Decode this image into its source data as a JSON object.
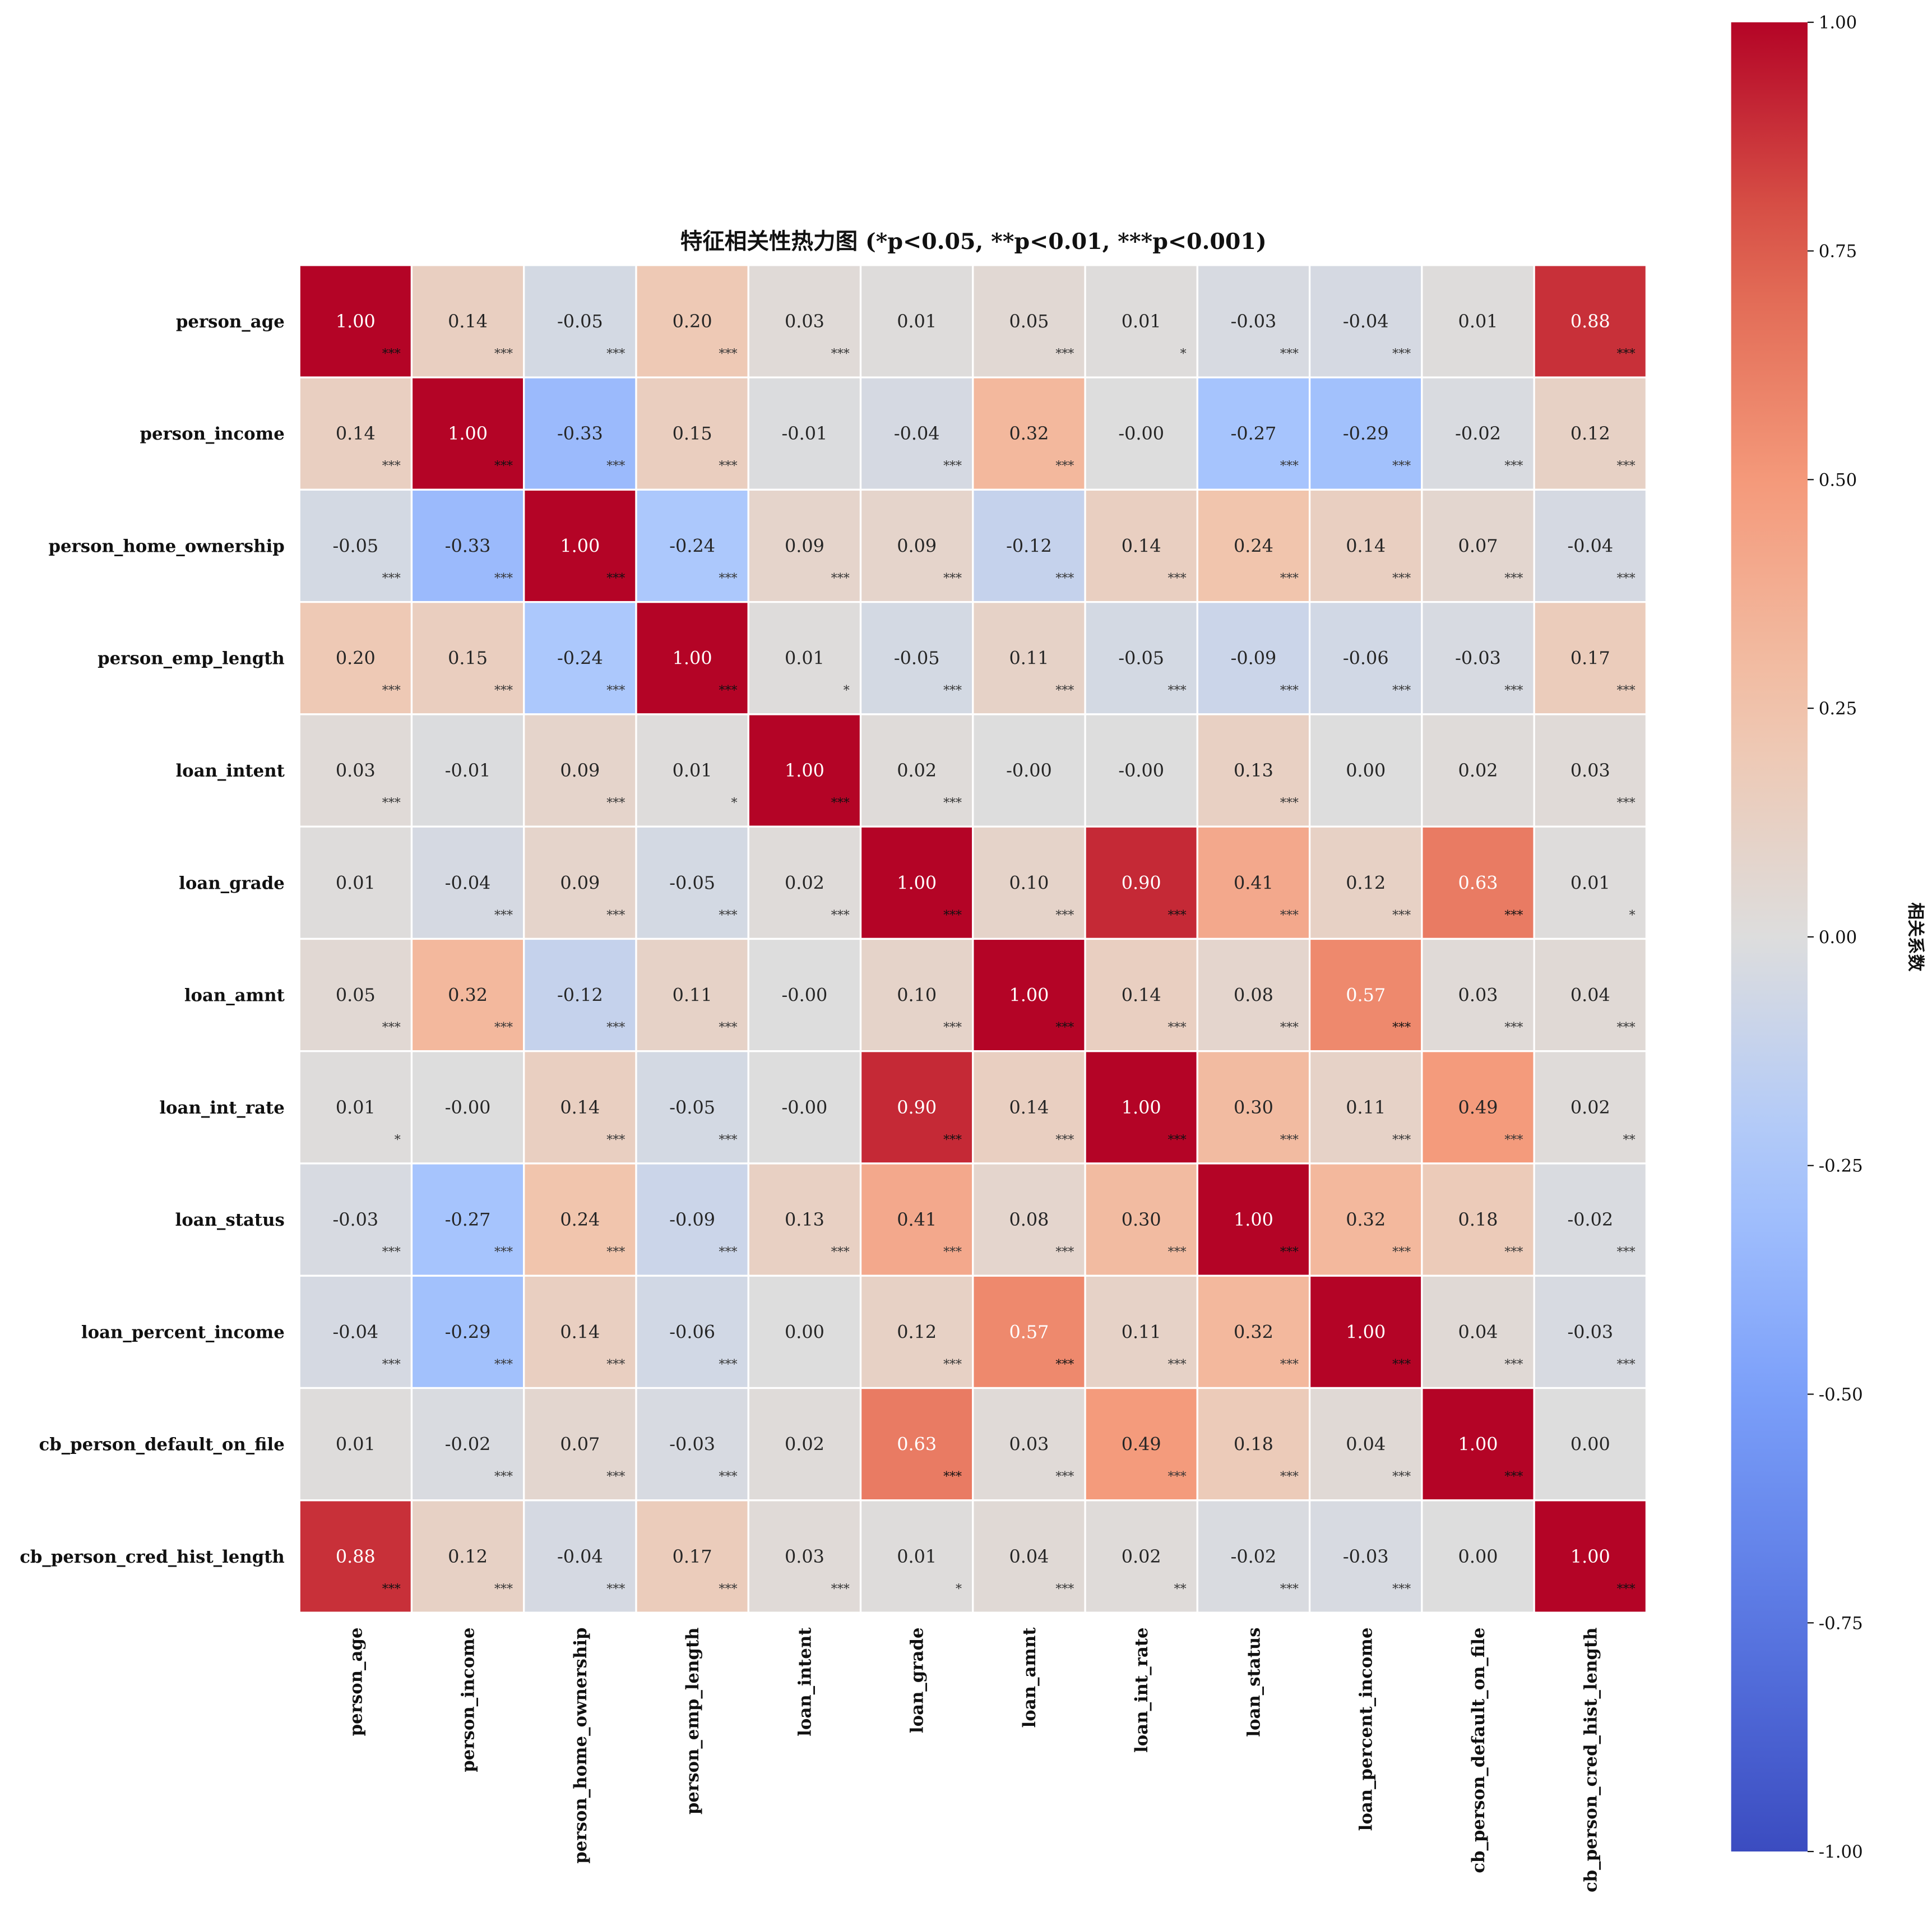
{
  "chart_data": {
    "type": "heatmap",
    "title": "特征相关性热力图 (*p<0.05, **p<0.01, ***p<0.001)",
    "colormap": "coolwarm",
    "vmin": -1,
    "vmax": 1,
    "colorbar_label": "相关系数",
    "colorbar_ticks": [
      "1.00",
      "0.75",
      "0.50",
      "0.25",
      "0.00",
      "-0.25",
      "-0.50",
      "-0.75",
      "-1.00"
    ],
    "labels": [
      "person_age",
      "person_income",
      "person_home_ownership",
      "person_emp_length",
      "loan_intent",
      "loan_grade",
      "loan_amnt",
      "loan_int_rate",
      "loan_status",
      "loan_percent_income",
      "cb_person_default_on_file",
      "cb_person_cred_hist_length"
    ],
    "values": [
      [
        1.0,
        0.14,
        -0.05,
        0.2,
        0.03,
        0.01,
        0.05,
        0.01,
        -0.03,
        -0.04,
        0.01,
        0.88
      ],
      [
        0.14,
        1.0,
        -0.33,
        0.15,
        -0.01,
        -0.04,
        0.32,
        -0.0,
        -0.27,
        -0.29,
        -0.02,
        0.12
      ],
      [
        -0.05,
        -0.33,
        1.0,
        -0.24,
        0.09,
        0.09,
        -0.12,
        0.14,
        0.24,
        0.14,
        0.07,
        -0.04
      ],
      [
        0.2,
        0.15,
        -0.24,
        1.0,
        0.01,
        -0.05,
        0.11,
        -0.05,
        -0.09,
        -0.06,
        -0.03,
        0.17
      ],
      [
        0.03,
        -0.01,
        0.09,
        0.01,
        1.0,
        0.02,
        -0.0,
        -0.0,
        0.13,
        0.0,
        0.02,
        0.03
      ],
      [
        0.01,
        -0.04,
        0.09,
        -0.05,
        0.02,
        1.0,
        0.1,
        0.9,
        0.41,
        0.12,
        0.63,
        0.01
      ],
      [
        0.05,
        0.32,
        -0.12,
        0.11,
        -0.0,
        0.1,
        1.0,
        0.14,
        0.08,
        0.57,
        0.03,
        0.04
      ],
      [
        0.01,
        -0.0,
        0.14,
        -0.05,
        -0.0,
        0.9,
        0.14,
        1.0,
        0.3,
        0.11,
        0.49,
        0.02
      ],
      [
        -0.03,
        -0.27,
        0.24,
        -0.09,
        0.13,
        0.41,
        0.08,
        0.3,
        1.0,
        0.32,
        0.18,
        -0.02
      ],
      [
        -0.04,
        -0.29,
        0.14,
        -0.06,
        0.0,
        0.12,
        0.57,
        0.11,
        0.32,
        1.0,
        0.04,
        -0.03
      ],
      [
        0.01,
        -0.02,
        0.07,
        -0.03,
        0.02,
        0.63,
        0.03,
        0.49,
        0.18,
        0.04,
        1.0,
        0.0
      ],
      [
        0.88,
        0.12,
        -0.04,
        0.17,
        0.03,
        0.01,
        0.04,
        0.02,
        -0.02,
        -0.03,
        0.0,
        1.0
      ]
    ],
    "display_values": [
      [
        "1.00",
        "0.14",
        "-0.05",
        "0.20",
        "0.03",
        "0.01",
        "0.05",
        "0.01",
        "-0.03",
        "-0.04",
        "0.01",
        "0.88"
      ],
      [
        "0.14",
        "1.00",
        "-0.33",
        "0.15",
        "-0.01",
        "-0.04",
        "0.32",
        "-0.00",
        "-0.27",
        "-0.29",
        "-0.02",
        "0.12"
      ],
      [
        "-0.05",
        "-0.33",
        "1.00",
        "-0.24",
        "0.09",
        "0.09",
        "-0.12",
        "0.14",
        "0.24",
        "0.14",
        "0.07",
        "-0.04"
      ],
      [
        "0.20",
        "0.15",
        "-0.24",
        "1.00",
        "0.01",
        "-0.05",
        "0.11",
        "-0.05",
        "-0.09",
        "-0.06",
        "-0.03",
        "0.17"
      ],
      [
        "0.03",
        "-0.01",
        "0.09",
        "0.01",
        "1.00",
        "0.02",
        "-0.00",
        "-0.00",
        "0.13",
        "0.00",
        "0.02",
        "0.03"
      ],
      [
        "0.01",
        "-0.04",
        "0.09",
        "-0.05",
        "0.02",
        "1.00",
        "0.10",
        "0.90",
        "0.41",
        "0.12",
        "0.63",
        "0.01"
      ],
      [
        "0.05",
        "0.32",
        "-0.12",
        "0.11",
        "-0.00",
        "0.10",
        "1.00",
        "0.14",
        "0.08",
        "0.57",
        "0.03",
        "0.04"
      ],
      [
        "0.01",
        "-0.00",
        "0.14",
        "-0.05",
        "-0.00",
        "0.90",
        "0.14",
        "1.00",
        "0.30",
        "0.11",
        "0.49",
        "0.02"
      ],
      [
        "-0.03",
        "-0.27",
        "0.24",
        "-0.09",
        "0.13",
        "0.41",
        "0.08",
        "0.30",
        "1.00",
        "0.32",
        "0.18",
        "-0.02"
      ],
      [
        "-0.04",
        "-0.29",
        "0.14",
        "-0.06",
        "0.00",
        "0.12",
        "0.57",
        "0.11",
        "0.32",
        "1.00",
        "0.04",
        "-0.03"
      ],
      [
        "0.01",
        "-0.02",
        "0.07",
        "-0.03",
        "0.02",
        "0.63",
        "0.03",
        "0.49",
        "0.18",
        "0.04",
        "1.00",
        "0.00"
      ],
      [
        "0.88",
        "0.12",
        "-0.04",
        "0.17",
        "0.03",
        "0.01",
        "0.04",
        "0.02",
        "-0.02",
        "-0.03",
        "0.00",
        "1.00"
      ]
    ],
    "significance": [
      [
        "***",
        "***",
        "***",
        "***",
        "***",
        "",
        "***",
        "*",
        "***",
        "***",
        "",
        "***"
      ],
      [
        "***",
        "***",
        "***",
        "***",
        "",
        "***",
        "***",
        "",
        "***",
        "***",
        "***",
        "***"
      ],
      [
        "***",
        "***",
        "***",
        "***",
        "***",
        "***",
        "***",
        "***",
        "***",
        "***",
        "***",
        "***"
      ],
      [
        "***",
        "***",
        "***",
        "***",
        "*",
        "***",
        "***",
        "***",
        "***",
        "***",
        "***",
        "***"
      ],
      [
        "***",
        "",
        "***",
        "*",
        "***",
        "***",
        "",
        "",
        "***",
        "",
        "",
        "***"
      ],
      [
        "",
        "***",
        "***",
        "***",
        "***",
        "***",
        "***",
        "***",
        "***",
        "***",
        "***",
        "*"
      ],
      [
        "***",
        "***",
        "***",
        "***",
        "",
        "***",
        "***",
        "***",
        "***",
        "***",
        "***",
        "***"
      ],
      [
        "*",
        "",
        "***",
        "***",
        "",
        "***",
        "***",
        "***",
        "***",
        "***",
        "***",
        "**"
      ],
      [
        "***",
        "***",
        "***",
        "***",
        "***",
        "***",
        "***",
        "***",
        "***",
        "***",
        "***",
        "***"
      ],
      [
        "***",
        "***",
        "***",
        "***",
        "",
        "***",
        "***",
        "***",
        "***",
        "***",
        "***",
        "***"
      ],
      [
        "",
        "***",
        "***",
        "***",
        "",
        "***",
        "***",
        "***",
        "***",
        "***",
        "***",
        ""
      ],
      [
        "***",
        "***",
        "***",
        "***",
        "***",
        "*",
        "***",
        "**",
        "***",
        "***",
        "",
        "***"
      ]
    ]
  }
}
